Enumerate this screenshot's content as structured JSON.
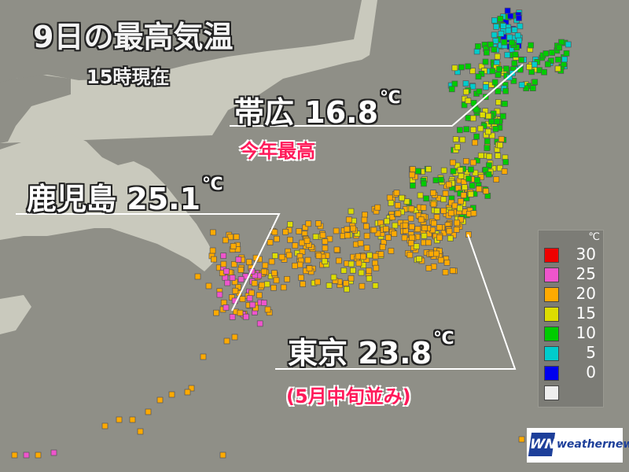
{
  "title": "9日の最高気温",
  "subtitle": "15時現在",
  "callouts": [
    {
      "city": "帯広",
      "value": "16.8",
      "unit": "℃",
      "note": "今年最高"
    },
    {
      "city": "鹿児島",
      "value": "25.1",
      "unit": "℃"
    },
    {
      "city": "東京",
      "value": "23.8",
      "unit": "℃",
      "note": "(5月中旬並み)"
    }
  ],
  "legend": {
    "unit": "℃",
    "items": [
      {
        "label": "30",
        "color": "#ee0000"
      },
      {
        "label": "25",
        "color": "#ee55cc"
      },
      {
        "label": "20",
        "color": "#ffaa00"
      },
      {
        "label": "15",
        "color": "#dddd00"
      },
      {
        "label": "10",
        "color": "#00cc00"
      },
      {
        "label": "5",
        "color": "#00cccc"
      },
      {
        "label": "0",
        "color": "#0000ee"
      },
      {
        "label": "",
        "color": "#eeeeee"
      }
    ]
  },
  "logo": {
    "mark": "WN",
    "text": "weathernews"
  },
  "colors": {
    "sea": "#8f8f87",
    "land": "#c9c9bd",
    "highlight": "#ff1a5a"
  }
}
